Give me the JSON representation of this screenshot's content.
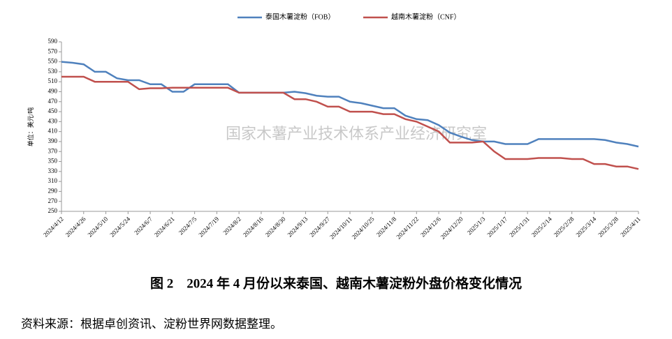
{
  "chart_data": {
    "type": "line",
    "ylabel": "单位：美元/吨",
    "watermark": "国家木薯产业技术体系产业经济研究室",
    "caption": "图 2　2024 年 4 月份以来泰国、越南木薯淀粉外盘价格变化情况",
    "source": "资料来源：根据卓创资讯、淀粉世界网数据整理。",
    "categories": [
      "2024/4/12",
      null,
      "2024/4/26",
      null,
      "2024/5/10",
      null,
      "2024/5/24",
      null,
      "2024/6/7",
      null,
      "2024/6/21",
      null,
      "2024/7/5",
      null,
      "2024/7/19",
      null,
      "2024/8/2",
      null,
      "2024/8/16",
      null,
      "2024/8/30",
      null,
      "2024/9/13",
      null,
      "2024/9/27",
      null,
      "2024/10/11",
      null,
      "2024/10/25",
      null,
      "2024/11/8",
      null,
      "2024/11/22",
      null,
      "2024/12/6",
      null,
      "2024/12/20",
      null,
      "2025/1/3",
      null,
      "2025/1/17",
      null,
      "2025/1/31",
      null,
      "2025/2/14",
      null,
      "2025/2/28",
      null,
      "2025/3/14",
      null,
      "2025/3/28",
      null,
      "2025/4/11"
    ],
    "series": [
      {
        "name": "泰国木薯淀粉（FOB）",
        "color": "#4f81bd",
        "values": [
          550,
          548,
          545,
          530,
          530,
          517,
          513,
          513,
          505,
          505,
          490,
          490,
          505,
          505,
          505,
          505,
          488,
          488,
          488,
          488,
          488,
          490,
          487,
          482,
          480,
          480,
          470,
          467,
          462,
          457,
          457,
          442,
          435,
          433,
          423,
          408,
          400,
          393,
          390,
          390,
          385,
          385,
          385,
          395,
          395,
          395,
          395,
          395,
          395,
          393,
          388,
          385,
          380
        ]
      },
      {
        "name": "越南木薯淀粉（CNF）",
        "color": "#c0504d",
        "values": [
          520,
          520,
          520,
          510,
          510,
          510,
          510,
          495,
          497,
          497,
          498,
          498,
          498,
          498,
          498,
          498,
          488,
          488,
          488,
          488,
          488,
          475,
          475,
          470,
          460,
          460,
          450,
          450,
          450,
          445,
          445,
          435,
          430,
          420,
          410,
          388,
          388,
          388,
          390,
          370,
          355,
          355,
          355,
          357,
          357,
          357,
          355,
          355,
          345,
          345,
          340,
          340,
          335
        ]
      }
    ],
    "ylim": [
      250,
      590
    ],
    "yticks": [
      250,
      270,
      290,
      310,
      330,
      350,
      370,
      390,
      410,
      430,
      450,
      470,
      490,
      510,
      530,
      550,
      570,
      590
    ],
    "grid": false,
    "legend": "top"
  }
}
